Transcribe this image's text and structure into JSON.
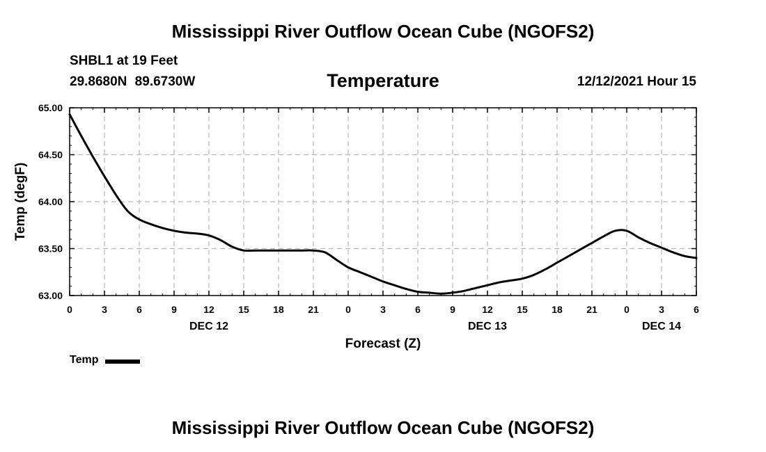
{
  "header": {
    "title": "Mississippi River Outflow Ocean Cube (NGOFS2)",
    "station": "SHBL1 at 19 Feet",
    "coords": "29.8680N  89.6730W",
    "plot_title": "Temperature",
    "timestamp": "12/12/2021 Hour 15"
  },
  "footer": {
    "title": "Mississippi River Outflow Ocean Cube (NGOFS2)"
  },
  "legend": {
    "label": "Temp"
  },
  "chart_data": {
    "type": "line",
    "title": "Temperature",
    "xlabel": "Forecast (Z)",
    "ylabel": "Temp (degF)",
    "ylim": [
      63.0,
      65.0
    ],
    "xlim": [
      0,
      54
    ],
    "grid": true,
    "x_units": "hours since 12/12/2021 00Z",
    "x_ticks": [
      0,
      3,
      6,
      9,
      12,
      15,
      18,
      21,
      24,
      27,
      30,
      33,
      36,
      39,
      42,
      45,
      48,
      51,
      54
    ],
    "x_tick_labels": [
      "0",
      "3",
      "6",
      "9",
      "12",
      "15",
      "18",
      "21",
      "0",
      "3",
      "6",
      "9",
      "12",
      "15",
      "18",
      "21",
      "0",
      "3",
      "6"
    ],
    "y_ticks": [
      63.0,
      63.5,
      64.0,
      64.5,
      65.0
    ],
    "y_tick_labels": [
      "63.00",
      "63.50",
      "64.00",
      "64.50",
      "65.00"
    ],
    "date_labels": [
      {
        "x": 12,
        "label": "DEC 12"
      },
      {
        "x": 36,
        "label": "DEC 13"
      },
      {
        "x": 51,
        "label": "DEC 14"
      }
    ],
    "series": [
      {
        "name": "Temp",
        "color": "#000000",
        "x": [
          0,
          1,
          2,
          3,
          4,
          5,
          6,
          7,
          8,
          9,
          10,
          11,
          12,
          13,
          14,
          15,
          16,
          17,
          18,
          19,
          20,
          21,
          22,
          23,
          24,
          25,
          26,
          27,
          28,
          29,
          30,
          31,
          32,
          33,
          34,
          35,
          36,
          37,
          38,
          39,
          40,
          41,
          42,
          43,
          44,
          45,
          46,
          47,
          48,
          49,
          50,
          51,
          52,
          53,
          54
        ],
        "values": [
          64.93,
          64.7,
          64.48,
          64.27,
          64.07,
          63.9,
          63.81,
          63.76,
          63.72,
          63.69,
          63.67,
          63.66,
          63.64,
          63.59,
          63.52,
          63.48,
          63.48,
          63.48,
          63.48,
          63.48,
          63.48,
          63.48,
          63.46,
          63.38,
          63.3,
          63.25,
          63.2,
          63.15,
          63.11,
          63.07,
          63.04,
          63.03,
          63.02,
          63.03,
          63.05,
          63.08,
          63.11,
          63.14,
          63.16,
          63.18,
          63.22,
          63.28,
          63.35,
          63.42,
          63.49,
          63.56,
          63.63,
          63.69,
          63.69,
          63.62,
          63.56,
          63.51,
          63.46,
          63.42,
          63.4
        ]
      }
    ]
  }
}
